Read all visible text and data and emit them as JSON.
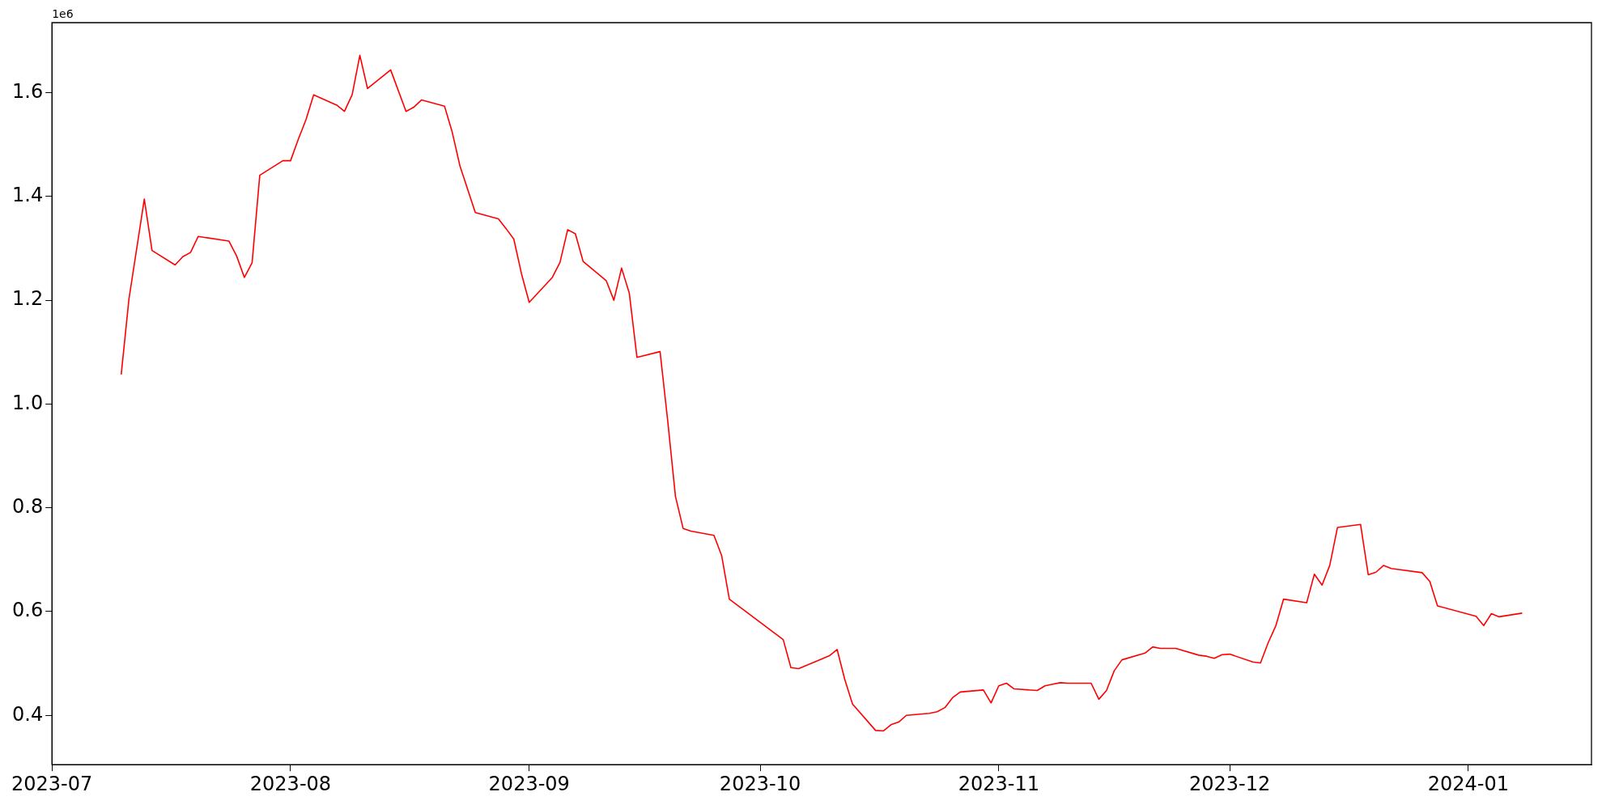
{
  "chart_data": {
    "type": "line",
    "annotations": [
      "1e6"
    ],
    "x": [
      "2023-07-10",
      "2023-07-11",
      "2023-07-13",
      "2023-07-14",
      "2023-07-17",
      "2023-07-18",
      "2023-07-19",
      "2023-07-20",
      "2023-07-24",
      "2023-07-25",
      "2023-07-26",
      "2023-07-27",
      "2023-07-28",
      "2023-07-31",
      "2023-08-01",
      "2023-08-02",
      "2023-08-03",
      "2023-08-04",
      "2023-08-07",
      "2023-08-08",
      "2023-08-09",
      "2023-08-10",
      "2023-08-11",
      "2023-08-14",
      "2023-08-16",
      "2023-08-17",
      "2023-08-18",
      "2023-08-21",
      "2023-08-22",
      "2023-08-23",
      "2023-08-25",
      "2023-08-28",
      "2023-08-29",
      "2023-08-30",
      "2023-08-31",
      "2023-09-01",
      "2023-09-04",
      "2023-09-05",
      "2023-09-06",
      "2023-09-07",
      "2023-09-08",
      "2023-09-11",
      "2023-09-12",
      "2023-09-13",
      "2023-09-14",
      "2023-09-15",
      "2023-09-18",
      "2023-09-19",
      "2023-09-20",
      "2023-09-21",
      "2023-09-22",
      "2023-09-25",
      "2023-09-26",
      "2023-09-27",
      "2023-10-04",
      "2023-10-05",
      "2023-10-06",
      "2023-10-10",
      "2023-10-11",
      "2023-10-12",
      "2023-10-13",
      "2023-10-16",
      "2023-10-17",
      "2023-10-18",
      "2023-10-19",
      "2023-10-20",
      "2023-10-23",
      "2023-10-24",
      "2023-10-25",
      "2023-10-26",
      "2023-10-27",
      "2023-10-30",
      "2023-10-31",
      "2023-11-01",
      "2023-11-02",
      "2023-11-03",
      "2023-11-06",
      "2023-11-07",
      "2023-11-08",
      "2023-11-09",
      "2023-11-10",
      "2023-11-13",
      "2023-11-14",
      "2023-11-15",
      "2023-11-16",
      "2023-11-17",
      "2023-11-20",
      "2023-11-21",
      "2023-11-22",
      "2023-11-24",
      "2023-11-27",
      "2023-11-28",
      "2023-11-29",
      "2023-11-30",
      "2023-12-01",
      "2023-12-04",
      "2023-12-05",
      "2023-12-06",
      "2023-12-07",
      "2023-12-08",
      "2023-12-11",
      "2023-12-12",
      "2023-12-13",
      "2023-12-14",
      "2023-12-15",
      "2023-12-18",
      "2023-12-19",
      "2023-12-20",
      "2023-12-21",
      "2023-12-22",
      "2023-12-26",
      "2023-12-27",
      "2023-12-28",
      "2024-01-02",
      "2024-01-03",
      "2024-01-04",
      "2024-01-05",
      "2024-01-08"
    ],
    "series": [
      {
        "color": "#ff0000",
        "values": [
          1.057,
          1.202,
          1.395,
          1.296,
          1.268,
          1.284,
          1.292,
          1.323,
          1.314,
          1.285,
          1.244,
          1.272,
          1.441,
          1.469,
          1.469,
          1.51,
          1.548,
          1.596,
          1.576,
          1.564,
          1.596,
          1.672,
          1.608,
          1.644,
          1.564,
          1.572,
          1.586,
          1.574,
          1.524,
          1.459,
          1.369,
          1.357,
          1.338,
          1.318,
          1.251,
          1.196,
          1.244,
          1.273,
          1.336,
          1.328,
          1.275,
          1.238,
          1.2,
          1.262,
          1.214,
          1.09,
          1.101,
          0.967,
          0.822,
          0.76,
          0.755,
          0.747,
          0.708,
          0.624,
          0.546,
          0.492,
          0.49,
          0.515,
          0.527,
          0.469,
          0.422,
          0.371,
          0.37,
          0.382,
          0.387,
          0.4,
          0.404,
          0.407,
          0.415,
          0.434,
          0.445,
          0.449,
          0.424,
          0.457,
          0.462,
          0.451,
          0.448,
          0.457,
          0.46,
          0.463,
          0.462,
          0.462,
          0.431,
          0.448,
          0.486,
          0.507,
          0.52,
          0.532,
          0.529,
          0.529,
          0.516,
          0.514,
          0.51,
          0.517,
          0.518,
          0.503,
          0.501,
          0.54,
          0.573,
          0.624,
          0.617,
          0.672,
          0.651,
          0.689,
          0.762,
          0.768,
          0.671,
          0.676,
          0.689,
          0.683,
          0.675,
          0.658,
          0.611,
          0.591,
          0.573,
          0.596,
          0.59,
          0.597
        ]
      }
    ],
    "xlim": [
      "2023-07-01",
      "2024-01-17"
    ],
    "xticks": [
      {
        "value": "2023-07-01",
        "label": "2023-07"
      },
      {
        "value": "2023-08-01",
        "label": "2023-08"
      },
      {
        "value": "2023-09-01",
        "label": "2023-09"
      },
      {
        "value": "2023-10-01",
        "label": "2023-10"
      },
      {
        "value": "2023-11-01",
        "label": "2023-11"
      },
      {
        "value": "2023-12-01",
        "label": "2023-12"
      },
      {
        "value": "2024-01-01",
        "label": "2024-01"
      }
    ],
    "ylim": [
      0.305,
      1.735
    ],
    "yticks": [
      {
        "value": 0.4,
        "label": "0.4"
      },
      {
        "value": 0.6,
        "label": "0.6"
      },
      {
        "value": 0.8,
        "label": "0.8"
      },
      {
        "value": 1.0,
        "label": "1.0"
      },
      {
        "value": 1.2,
        "label": "1.2"
      },
      {
        "value": 1.4,
        "label": "1.4"
      },
      {
        "value": 1.6,
        "label": "1.6"
      }
    ],
    "grid": false,
    "legend": false,
    "marker": "none",
    "line_style": "solid"
  }
}
